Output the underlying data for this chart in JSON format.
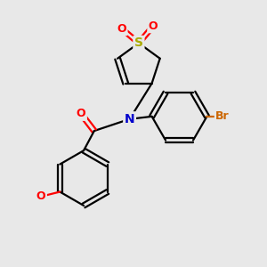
{
  "background_color": "#e8e8e8",
  "bond_color": "#000000",
  "bond_width": 1.6,
  "atom_colors": {
    "O": "#ff0000",
    "N": "#0000cc",
    "S": "#aaaa00",
    "Br": "#cc6600",
    "C": "#000000"
  },
  "font_size_atom": 9
}
